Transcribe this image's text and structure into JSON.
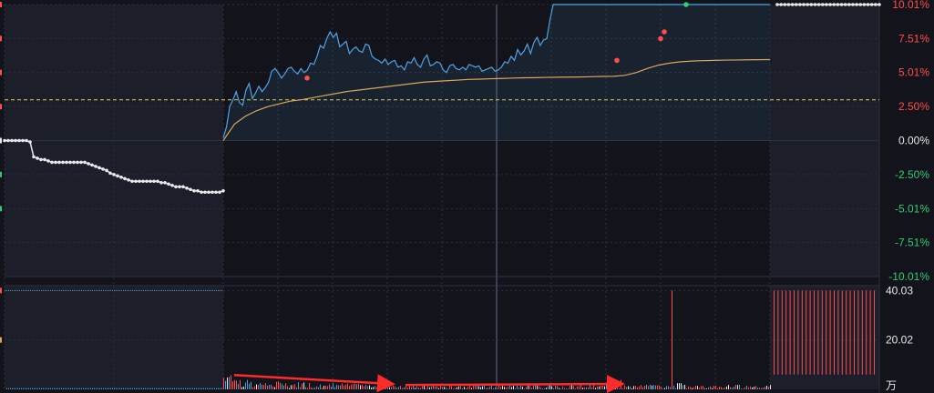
{
  "colors": {
    "background": "#13141b",
    "shaded": "#1c1e2a",
    "grid": "#2c2f3d",
    "price_line": "#4ea3e6",
    "avg_line": "#d9a85a",
    "up": "#ff4d4d",
    "down": "#2ecc71",
    "neutral": "#e8e8e8",
    "ref_line": "#f0d048",
    "arrow": "#ff2a2a",
    "volume_low": "#4a9fd8"
  },
  "price_axis": {
    "labels": [
      "10.01%",
      "7.51%",
      "5.01%",
      "2.50%",
      "0.00%",
      "-2.50%",
      "-5.01%",
      "-7.51%",
      "-10.01%"
    ]
  },
  "volume_axis": {
    "labels": [
      "40.03",
      "20.02"
    ],
    "unit": "万"
  },
  "chart_data": [
    {
      "type": "line",
      "series": [
        {
          "values": [
            0,
            0,
            0,
            0,
            0,
            0,
            0,
            -0.1,
            -1.2,
            -1.3,
            -1.4,
            -1.4,
            -1.5,
            -1.6,
            -1.6,
            -1.6,
            -1.6,
            -1.6,
            -1.6,
            -1.6,
            -1.6,
            -1.6,
            -1.6,
            -1.7,
            -1.8,
            -1.9,
            -2.0,
            -2.1,
            -2.2,
            -2.4,
            -2.5,
            -2.6,
            -2.7,
            -2.8,
            -2.9,
            -3.0,
            -3.0,
            -3.0,
            -3.0,
            -3.0,
            -3.0,
            -3.0,
            -3.0,
            -3.1,
            -3.1,
            -3.2,
            -3.3,
            -3.4,
            -3.4,
            -3.4,
            -3.5,
            -3.6,
            -3.7,
            -3.7,
            -3.8,
            -3.8,
            -3.8,
            -3.8,
            -3.8,
            -3.8,
            -3.7
          ],
          "x_range": [
            0,
            60
          ]
        },
        {
          "values": [
            0.2,
            1.0,
            2.5,
            3.0,
            3.6,
            2.8,
            2.6,
            3.7,
            4.2,
            3.1,
            3.5,
            4.0,
            3.6,
            3.9,
            4.3,
            5.1,
            5.3,
            5.0,
            4.6,
            4.9,
            5.3,
            5.4,
            5.1,
            4.9,
            5.3,
            5.0,
            5.2,
            5.7,
            5.6,
            6.2,
            7.0,
            6.8,
            7.5,
            8.0,
            7.6,
            7.9,
            6.9,
            7.1,
            7.3,
            6.4,
            6.7,
            6.9,
            6.6,
            6.5,
            7.1,
            7.0,
            6.2,
            6.0,
            5.9,
            5.7,
            6.0,
            5.6,
            5.8,
            5.9,
            5.4,
            5.5,
            5.2,
            5.8,
            5.7,
            6.1,
            5.6,
            5.4,
            6.0,
            6.3,
            5.5,
            5.6,
            5.8,
            5.7,
            5.2,
            5.0,
            5.5,
            5.6,
            5.3,
            5.2,
            5.4,
            5.2,
            5.6,
            5.5,
            5.4,
            5.5,
            5.1,
            5.2,
            5.3,
            5.4,
            5.1,
            5.2,
            5.4,
            5.8,
            5.7,
            6.2,
            5.9,
            6.7,
            6.3,
            6.6,
            7.1,
            6.4,
            7.2,
            7.6,
            7.0,
            7.4,
            7.5,
            8.9,
            10.01,
            10.01,
            10.01,
            10.01,
            10.01,
            10.01,
            10.01,
            10.01,
            10.01,
            10.01,
            10.01,
            10.01,
            10.01,
            10.01,
            10.01,
            10.01,
            10.01,
            10.01,
            10.01,
            10.01,
            10.01,
            10.01,
            10.01,
            10.01,
            10.01,
            10.01,
            10.01,
            10.01,
            10.01,
            10.01,
            10.01,
            10.01,
            10.01,
            10.01,
            10.01,
            10.01,
            10.01,
            10.01,
            10.01,
            10.01,
            10.01,
            10.01,
            10.01,
            10.01,
            10.01,
            10.01,
            10.01,
            10.01,
            10.01,
            10.01,
            10.01,
            10.01,
            10.01,
            10.01,
            10.01,
            10.01,
            10.01,
            10.01,
            10.01,
            10.01,
            10.01,
            10.01,
            10.01,
            10.01,
            10.01,
            10.01,
            10.01,
            10.01
          ],
          "x_range": [
            60,
            210
          ]
        },
        {
          "values": [
            0,
            1.2,
            1.8,
            2.2,
            2.5,
            2.7,
            2.9,
            3.0,
            3.15,
            3.3,
            3.45,
            3.6,
            3.7,
            3.8,
            3.9,
            4.0,
            4.1,
            4.2,
            4.3,
            4.35,
            4.4,
            4.45,
            4.5,
            4.52,
            4.55,
            4.57,
            4.6,
            4.62,
            4.63,
            4.65,
            4.66,
            4.67,
            4.68,
            4.7,
            4.72,
            4.73,
            4.8,
            5.0,
            5.3,
            5.55,
            5.7,
            5.8,
            5.85,
            5.88,
            5.9,
            5.92,
            5.93,
            5.94,
            5.95,
            5.96
          ],
          "x_range": [
            60,
            210
          ]
        },
        {
          "values": [
            10.01,
            10.01,
            10.01,
            10.01,
            10.01,
            10.01,
            10.01,
            10.01,
            10.01,
            10.01,
            10.01,
            10.01,
            10.01,
            10.01,
            10.01,
            10.01,
            10.01,
            10.01,
            10.01,
            10.01,
            10.01,
            10.01,
            10.01,
            10.01,
            10.01,
            10.01,
            10.01,
            10.01
          ],
          "x_range": [
            212,
            240
          ]
        }
      ],
      "reference_line": 3.0,
      "ylim": [
        -10.01,
        10.01
      ],
      "markers": [
        {
          "x": 83,
          "y": 4.6,
          "color": "up"
        },
        {
          "x": 168,
          "y": 5.9,
          "color": "up"
        },
        {
          "x": 180,
          "y": 7.5,
          "color": "up"
        },
        {
          "x": 181,
          "y": 8.0,
          "color": "up"
        },
        {
          "x": 187,
          "y": 10.01,
          "color": "down"
        }
      ],
      "vertical_gridlines": [
        0,
        30,
        60,
        75,
        90,
        105,
        120,
        135,
        150,
        165,
        180,
        195,
        210
      ]
    },
    {
      "type": "bar",
      "ylim": [
        0,
        42
      ],
      "unit": "万",
      "highlight_bar": {
        "x": 183,
        "value": 40.03
      },
      "arrows": [
        {
          "from": [
            63,
            5.8
          ],
          "to": [
            106,
            2.2
          ]
        },
        {
          "from": [
            110,
            1.8
          ],
          "to": [
            169,
            2.2
          ]
        }
      ]
    }
  ]
}
